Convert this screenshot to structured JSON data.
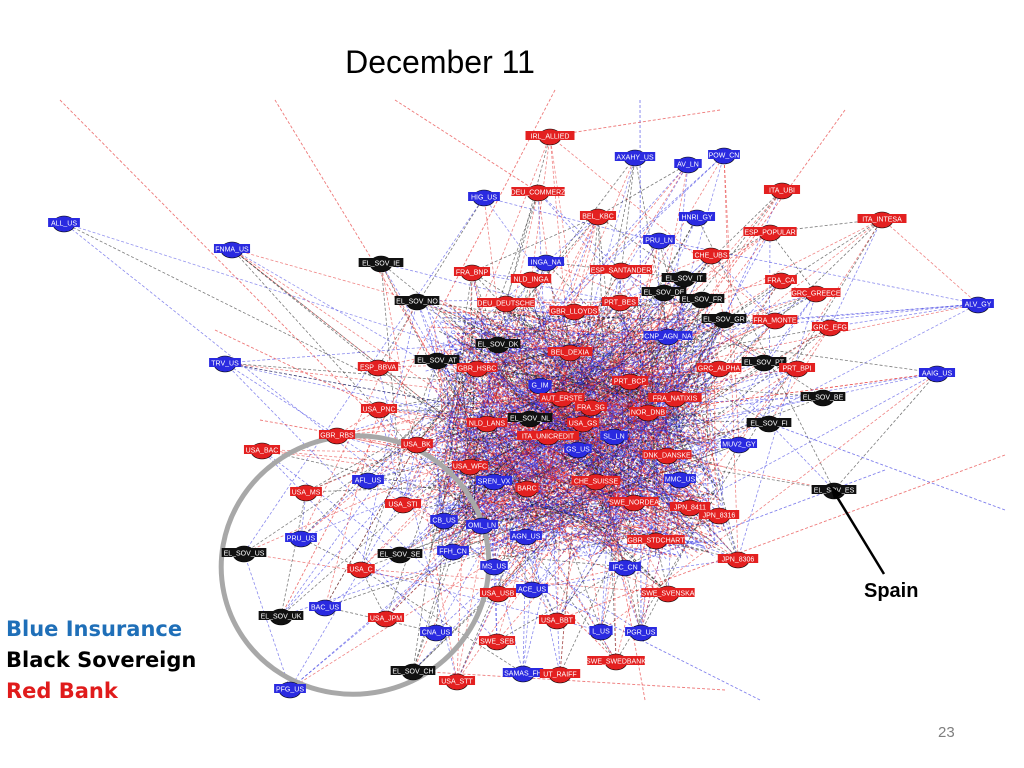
{
  "title": "December 11",
  "legend": [
    {
      "label": "Blue Insurance",
      "color": "#1f6fb8"
    },
    {
      "label": "Black Sovereign",
      "color": "#000000"
    },
    {
      "label": "Red Bank",
      "color": "#e01b1b"
    }
  ],
  "annotation": "Spain",
  "page_number": "23",
  "colors": {
    "insurance": "#2a2ae0",
    "sovereign": "#111111",
    "bank": "#e32020",
    "highlight_ellipse": "#a8a8a8"
  },
  "nodes": [
    {
      "label": "IRL_ALLIED",
      "type": "bank"
    },
    {
      "label": "AXAHY_US",
      "type": "insurance"
    },
    {
      "label": "AV_LN",
      "type": "insurance"
    },
    {
      "label": "POW_CN",
      "type": "insurance"
    },
    {
      "label": "DEU_COMMERZ",
      "type": "bank"
    },
    {
      "label": "HIG_US",
      "type": "insurance"
    },
    {
      "label": "ITA_UBI",
      "type": "bank"
    },
    {
      "label": "BEL_KBC",
      "type": "bank"
    },
    {
      "label": "HNRI_GY",
      "type": "insurance"
    },
    {
      "label": "ITA_INTESA",
      "type": "bank"
    },
    {
      "label": "ALL_US",
      "type": "insurance"
    },
    {
      "label": "PRU_LN",
      "type": "insurance"
    },
    {
      "label": "ESP_POPULAR",
      "type": "bank"
    },
    {
      "label": "FNMA_US",
      "type": "insurance"
    },
    {
      "label": "EL_SOV_IE",
      "type": "sovereign"
    },
    {
      "label": "INGA_NA",
      "type": "insurance"
    },
    {
      "label": "CHE_UBS",
      "type": "bank"
    },
    {
      "label": "FRA_BNP",
      "type": "bank"
    },
    {
      "label": "NLD_INGA",
      "type": "bank"
    },
    {
      "label": "ESP_SANTANDER",
      "type": "bank"
    },
    {
      "label": "EL_SOV_IT",
      "type": "sovereign"
    },
    {
      "label": "FRA_CA",
      "type": "bank"
    },
    {
      "label": "EL_SOV_NO",
      "type": "sovereign"
    },
    {
      "label": "EL_SOV_DE",
      "type": "sovereign"
    },
    {
      "label": "EL_SOV_FR",
      "type": "sovereign"
    },
    {
      "label": "GRC_GREECE",
      "type": "bank"
    },
    {
      "label": "ALV_GY",
      "type": "insurance"
    },
    {
      "label": "DEU_DEUTSCHE",
      "type": "bank"
    },
    {
      "label": "PRT_BES",
      "type": "bank"
    },
    {
      "label": "GBR_LLOYDS",
      "type": "bank"
    },
    {
      "label": "EL_SOV_GR",
      "type": "sovereign"
    },
    {
      "label": "FRA_MONTE",
      "type": "bank"
    },
    {
      "label": "GRC_EFG",
      "type": "bank"
    },
    {
      "label": "EL_SOV_DK",
      "type": "sovereign"
    },
    {
      "label": "CNP_AGN_NA",
      "type": "insurance"
    },
    {
      "label": "EL_SOV_AT",
      "type": "sovereign"
    },
    {
      "label": "BEL_DEXIA",
      "type": "bank"
    },
    {
      "label": "EL_SOV_PT",
      "type": "sovereign"
    },
    {
      "label": "TRV_US",
      "type": "insurance"
    },
    {
      "label": "ESP_BBVA",
      "type": "bank"
    },
    {
      "label": "GBR_HSBC",
      "type": "bank"
    },
    {
      "label": "G_IM",
      "type": "insurance"
    },
    {
      "label": "PRT_BCP",
      "type": "bank"
    },
    {
      "label": "GRC_ALPHA",
      "type": "bank"
    },
    {
      "label": "PRT_BPI",
      "type": "bank"
    },
    {
      "label": "AAIG_US",
      "type": "insurance"
    },
    {
      "label": "EL_SOV_BE",
      "type": "sovereign"
    },
    {
      "label": "AUT_ERSTE",
      "type": "bank"
    },
    {
      "label": "FRA_NATIXIS",
      "type": "bank"
    },
    {
      "label": "USA_PNC",
      "type": "bank"
    },
    {
      "label": "FRA_SG",
      "type": "bank"
    },
    {
      "label": "NOR_DNB",
      "type": "bank"
    },
    {
      "label": "EL_SOV_NL",
      "type": "sovereign"
    },
    {
      "label": "EL_SOV_FI",
      "type": "sovereign"
    },
    {
      "label": "NLD_LANS",
      "type": "bank"
    },
    {
      "label": "USA_GS",
      "type": "bank"
    },
    {
      "label": "GBR_RBS",
      "type": "bank"
    },
    {
      "label": "ITA_UNICREDIT",
      "type": "bank"
    },
    {
      "label": "SL_LN",
      "type": "insurance"
    },
    {
      "label": "USA_BAC",
      "type": "bank"
    },
    {
      "label": "USA_BK",
      "type": "bank"
    },
    {
      "label": "GS_US",
      "type": "insurance"
    },
    {
      "label": "MUV2_GY",
      "type": "insurance"
    },
    {
      "label": "DNK_DANSKE",
      "type": "bank"
    },
    {
      "label": "USA_WFC",
      "type": "bank"
    },
    {
      "label": "MMC_US",
      "type": "insurance"
    },
    {
      "label": "AFL_US",
      "type": "insurance"
    },
    {
      "label": "SREN_VX",
      "type": "insurance"
    },
    {
      "label": "BARC",
      "type": "bank"
    },
    {
      "label": "CHE_SUISSE",
      "type": "bank"
    },
    {
      "label": "USA_MS",
      "type": "bank"
    },
    {
      "label": "USA_STI",
      "type": "bank"
    },
    {
      "label": "SWE_NORDEA",
      "type": "bank"
    },
    {
      "label": "EL_SOV_ES",
      "type": "sovereign"
    },
    {
      "label": "JPN_8411",
      "type": "bank"
    },
    {
      "label": "CB_US",
      "type": "insurance"
    },
    {
      "label": "JPN_8316",
      "type": "bank"
    },
    {
      "label": "OML_LN",
      "type": "insurance"
    },
    {
      "label": "AGN_US",
      "type": "insurance"
    },
    {
      "label": "GBR_STDCHART",
      "type": "bank"
    },
    {
      "label": "PRU_US",
      "type": "insurance"
    },
    {
      "label": "EL_SOV_US",
      "type": "sovereign"
    },
    {
      "label": "EL_SOV_SE",
      "type": "sovereign"
    },
    {
      "label": "FFH_CN",
      "type": "insurance"
    },
    {
      "label": "JPN_8306",
      "type": "bank"
    },
    {
      "label": "USA_C",
      "type": "bank"
    },
    {
      "label": "MS_US",
      "type": "insurance"
    },
    {
      "label": "IFC_CN",
      "type": "insurance"
    },
    {
      "label": "USA_USB",
      "type": "bank"
    },
    {
      "label": "ACE_US",
      "type": "insurance"
    },
    {
      "label": "SWE_SVENSKA",
      "type": "bank"
    },
    {
      "label": "BAC_US",
      "type": "insurance"
    },
    {
      "label": "EL_SOV_UK",
      "type": "sovereign"
    },
    {
      "label": "USA_JPM",
      "type": "bank"
    },
    {
      "label": "USA_BBT",
      "type": "bank"
    },
    {
      "label": "L_US",
      "type": "insurance"
    },
    {
      "label": "PGR_US",
      "type": "insurance"
    },
    {
      "label": "CNA_US",
      "type": "insurance"
    },
    {
      "label": "SWE_SEB",
      "type": "bank"
    },
    {
      "label": "SWE_SWEDBANK",
      "type": "bank"
    },
    {
      "label": "EL_SOV_CH",
      "type": "sovereign"
    },
    {
      "label": "SAMAS_FH",
      "type": "insurance"
    },
    {
      "label": "UT_RAIFF",
      "type": "bank"
    },
    {
      "label": "USA_STT",
      "type": "bank"
    },
    {
      "label": "PFG_US",
      "type": "insurance"
    }
  ]
}
